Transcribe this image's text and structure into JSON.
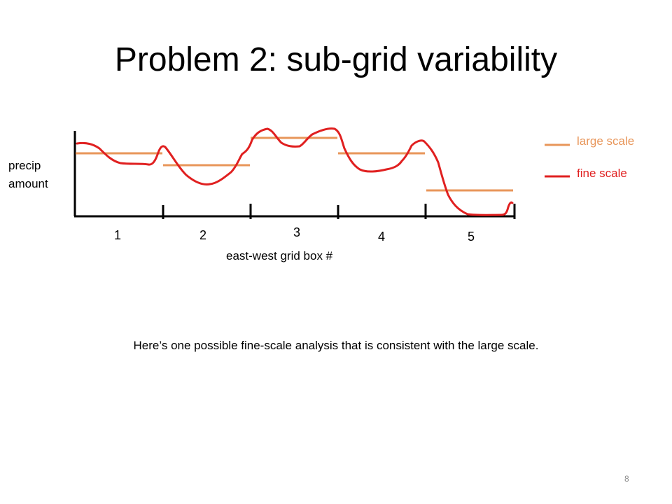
{
  "slide": {
    "title": "Problem 2: sub-grid variability",
    "caption": "Here’s one possible fine-scale analysis that is consistent with the large scale.",
    "page_number": "8"
  },
  "diagram": {
    "y_axis_label": [
      "precip",
      "amount"
    ],
    "x_axis_label": "east-west grid box #",
    "grid_boxes": [
      "1",
      "2",
      "3",
      "4",
      "5"
    ],
    "legend": [
      {
        "label": "large scale",
        "color": "#e8965a"
      },
      {
        "label": "fine scale",
        "color": "#e02020"
      }
    ],
    "colors": {
      "axis": "#000000",
      "large_scale": "#e8965a",
      "fine_scale": "#e02020"
    }
  }
}
